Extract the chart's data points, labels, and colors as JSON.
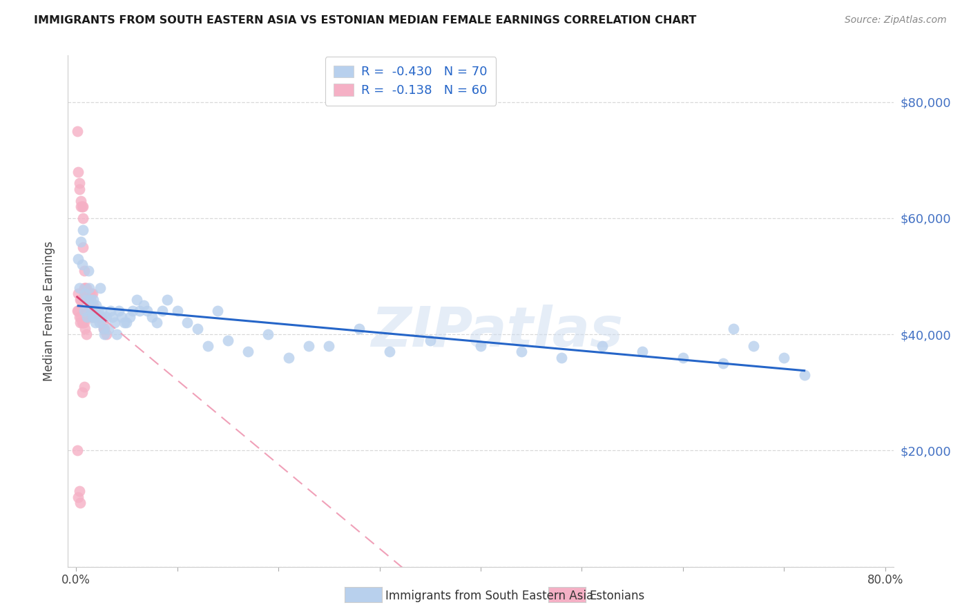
{
  "title": "IMMIGRANTS FROM SOUTH EASTERN ASIA VS ESTONIAN MEDIAN FEMALE EARNINGS CORRELATION CHART",
  "source": "Source: ZipAtlas.com",
  "ylabel": "Median Female Earnings",
  "legend_blue_r": "-0.430",
  "legend_blue_n": "70",
  "legend_pink_r": "-0.138",
  "legend_pink_n": "60",
  "legend_blue_label": "Immigrants from South Eastern Asia",
  "legend_pink_label": "Estonians",
  "blue_color": "#b8d0ed",
  "pink_color": "#f5b0c5",
  "line_blue_color": "#2565c8",
  "line_pink_solid_color": "#d94070",
  "line_pink_dash_color": "#f0a0b8",
  "background_color": "#ffffff",
  "grid_color": "#d0d0d0",
  "watermark": "ZIPatlas",
  "title_color": "#1a1a1a",
  "right_axis_color": "#4472c4",
  "blue_scatter_x": [
    0.002,
    0.003,
    0.005,
    0.006,
    0.007,
    0.008,
    0.009,
    0.01,
    0.011,
    0.012,
    0.013,
    0.014,
    0.015,
    0.016,
    0.017,
    0.018,
    0.019,
    0.02,
    0.022,
    0.023,
    0.024,
    0.025,
    0.026,
    0.027,
    0.028,
    0.03,
    0.032,
    0.034,
    0.036,
    0.038,
    0.04,
    0.042,
    0.045,
    0.048,
    0.05,
    0.053,
    0.056,
    0.06,
    0.063,
    0.067,
    0.07,
    0.075,
    0.08,
    0.085,
    0.09,
    0.1,
    0.11,
    0.12,
    0.13,
    0.14,
    0.15,
    0.17,
    0.19,
    0.21,
    0.23,
    0.25,
    0.28,
    0.31,
    0.35,
    0.4,
    0.44,
    0.48,
    0.52,
    0.56,
    0.6,
    0.64,
    0.65,
    0.67,
    0.7,
    0.72
  ],
  "blue_scatter_y": [
    53000,
    48000,
    56000,
    52000,
    58000,
    44000,
    47000,
    46000,
    43000,
    51000,
    48000,
    46000,
    44000,
    43000,
    46000,
    43000,
    42000,
    45000,
    44000,
    42000,
    48000,
    44000,
    43000,
    41000,
    40000,
    43000,
    41000,
    44000,
    43000,
    42000,
    40000,
    44000,
    43000,
    42000,
    42000,
    43000,
    44000,
    46000,
    44000,
    45000,
    44000,
    43000,
    42000,
    44000,
    46000,
    44000,
    42000,
    41000,
    38000,
    44000,
    39000,
    37000,
    40000,
    36000,
    38000,
    38000,
    41000,
    37000,
    39000,
    38000,
    37000,
    36000,
    38000,
    37000,
    36000,
    35000,
    41000,
    38000,
    36000,
    33000
  ],
  "pink_scatter_x": [
    0.001,
    0.001,
    0.002,
    0.002,
    0.002,
    0.003,
    0.003,
    0.003,
    0.004,
    0.004,
    0.005,
    0.005,
    0.005,
    0.006,
    0.006,
    0.007,
    0.007,
    0.007,
    0.008,
    0.008,
    0.008,
    0.009,
    0.009,
    0.01,
    0.01,
    0.01,
    0.011,
    0.011,
    0.012,
    0.012,
    0.013,
    0.013,
    0.014,
    0.015,
    0.015,
    0.016,
    0.016,
    0.017,
    0.018,
    0.019,
    0.02,
    0.021,
    0.022,
    0.023,
    0.024,
    0.025,
    0.026,
    0.027,
    0.028,
    0.03,
    0.001,
    0.002,
    0.003,
    0.004,
    0.005,
    0.006,
    0.007,
    0.008,
    0.009,
    0.01
  ],
  "pink_scatter_y": [
    75000,
    20000,
    68000,
    47000,
    12000,
    66000,
    65000,
    13000,
    11000,
    46000,
    63000,
    62000,
    46000,
    62000,
    30000,
    62000,
    60000,
    55000,
    51000,
    48000,
    31000,
    48000,
    47000,
    48000,
    47000,
    44000,
    47000,
    43000,
    47000,
    43000,
    47000,
    44000,
    46000,
    47000,
    43000,
    47000,
    43000,
    45000,
    44000,
    44000,
    43000,
    43000,
    43000,
    43000,
    43000,
    43000,
    42000,
    41000,
    41000,
    40000,
    44000,
    44000,
    43000,
    42000,
    43000,
    42000,
    42000,
    42000,
    41000,
    40000
  ],
  "xlim": [
    0.0,
    0.8
  ],
  "ylim": [
    0,
    88000
  ],
  "yticks": [
    0,
    20000,
    40000,
    60000,
    80000
  ],
  "right_yticks": [
    20000,
    40000,
    60000,
    80000
  ],
  "right_ytick_labels": [
    "$20,000",
    "$40,000",
    "$60,000",
    "$80,000"
  ]
}
